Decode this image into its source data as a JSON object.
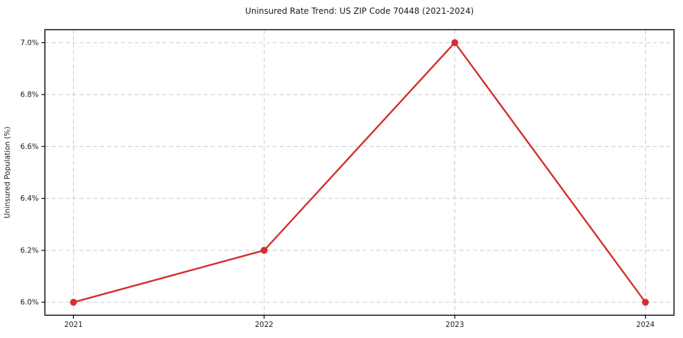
{
  "chart_data": {
    "type": "line",
    "title": "Uninsured Rate Trend: US ZIP Code 70448 (2021-2024)",
    "xlabel": "",
    "ylabel": "Uninsured Population (%)",
    "x": [
      2021,
      2022,
      2023,
      2024
    ],
    "x_tick_labels": [
      "2021",
      "2022",
      "2023",
      "2024"
    ],
    "series": [
      {
        "name": "Uninsured Population (%)",
        "values": [
          6.0,
          6.2,
          7.0,
          6.0
        ]
      }
    ],
    "y_ticks": [
      6.0,
      6.2,
      6.4,
      6.6,
      6.8,
      7.0
    ],
    "y_tick_labels": [
      "6.0%",
      "6.2%",
      "6.4%",
      "6.6%",
      "6.8%",
      "7.0%"
    ],
    "xlim": [
      2020.85,
      2024.15
    ],
    "ylim": [
      5.95,
      7.05
    ],
    "grid": true,
    "grid_style": "dashed",
    "legend": "none",
    "colors": {
      "line": "#d32f2f",
      "marker": "#d32f2f",
      "grid": "#c9c9c9",
      "axis": "#1a1a1a",
      "text": "#1a1a1a",
      "background": "#ffffff"
    }
  }
}
